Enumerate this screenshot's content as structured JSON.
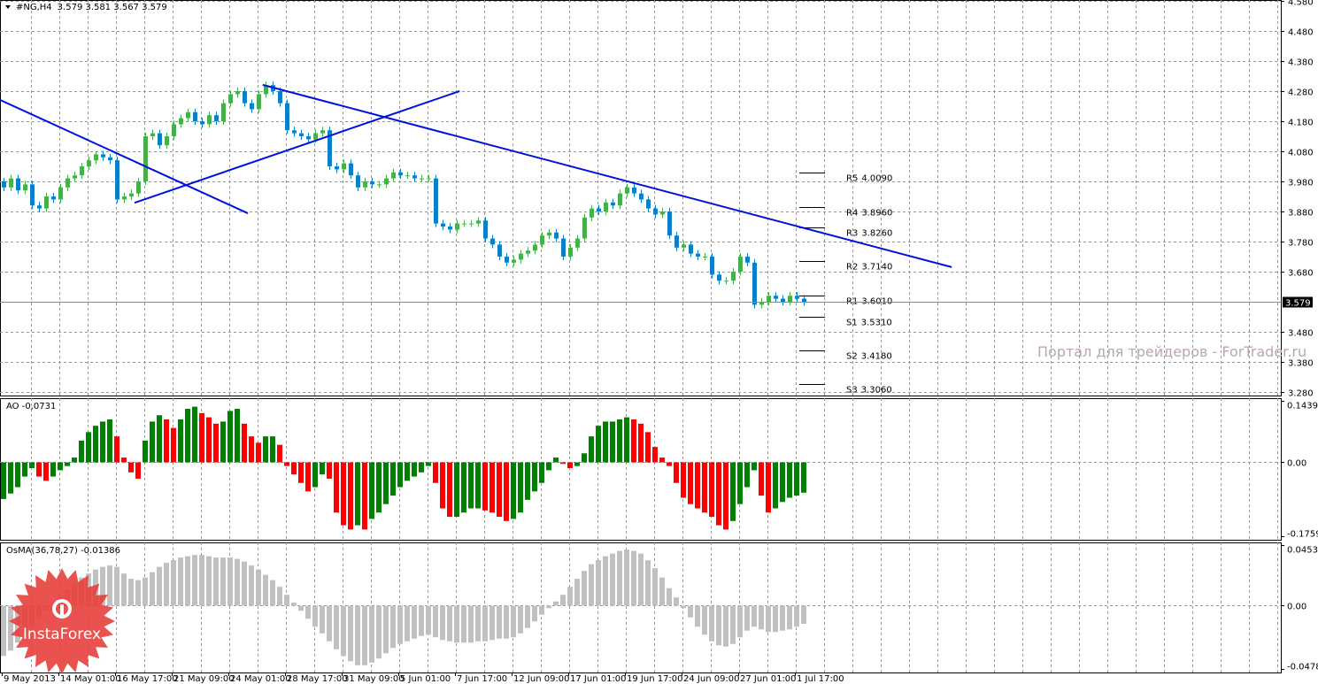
{
  "header": {
    "symbol_label": "#NG,H4",
    "ohlc": "3.579 3.581 3.567 3.579"
  },
  "watermark": "Портал для трейдеров - ForTrader.ru",
  "logo": {
    "text": "InstaForex",
    "color": "#e8403c"
  },
  "colors": {
    "bull": "#48b04a",
    "bear": "#0a80c8",
    "trendline": "#0010e0",
    "ao_up": "#008000",
    "ao_down": "#ff0000",
    "osma": "#c0c0c0",
    "grid": "#8a98a8"
  },
  "chart_data": [
    {
      "type": "candlestick",
      "title": "#NG,H4",
      "ylim": [
        3.28,
        4.58
      ],
      "yticks": [
        "4.580",
        "4.480",
        "4.380",
        "4.280",
        "4.180",
        "4.080",
        "3.980",
        "3.880",
        "3.780",
        "3.680",
        "3.480",
        "3.380",
        "3.280"
      ],
      "current_price": "3.579",
      "xticks": [
        "9 May 2013",
        "14 May 01:00",
        "16 May 17:00",
        "21 May 09:00",
        "24 May 01:00",
        "28 May 17:00",
        "31 May 09:00",
        "5 Jun 01:00",
        "7 Jun 17:00",
        "12 Jun 09:00",
        "17 Jun 01:00",
        "19 Jun 17:00",
        "24 Jun 09:00",
        "27 Jun 01:00",
        "1 Jul 17:00"
      ],
      "close": [
        3.96,
        3.99,
        3.95,
        3.97,
        3.9,
        3.89,
        3.93,
        3.92,
        3.96,
        3.99,
        4.0,
        4.03,
        4.05,
        4.07,
        4.06,
        4.05,
        3.92,
        3.93,
        3.94,
        3.98,
        4.13,
        4.14,
        4.1,
        4.13,
        4.17,
        4.19,
        4.21,
        4.18,
        4.17,
        4.2,
        4.18,
        4.24,
        4.27,
        4.28,
        4.24,
        4.22,
        4.27,
        4.3,
        4.28,
        4.24,
        4.15,
        4.14,
        4.13,
        4.12,
        4.14,
        4.15,
        4.03,
        4.02,
        4.04,
        4.0,
        3.96,
        3.98,
        3.97,
        3.97,
        3.99,
        4.01,
        4.0,
        4.0,
        3.99,
        3.99,
        3.99,
        3.84,
        3.83,
        3.82,
        3.84,
        3.84,
        3.84,
        3.85,
        3.79,
        3.77,
        3.73,
        3.71,
        3.72,
        3.74,
        3.75,
        3.77,
        3.8,
        3.81,
        3.79,
        3.73,
        3.76,
        3.79,
        3.86,
        3.89,
        3.88,
        3.91,
        3.9,
        3.94,
        3.96,
        3.94,
        3.92,
        3.89,
        3.87,
        3.88,
        3.8,
        3.76,
        3.77,
        3.74,
        3.73,
        3.73,
        3.67,
        3.65,
        3.65,
        3.68,
        3.73,
        3.71,
        3.57,
        3.58,
        3.6,
        3.59,
        3.58,
        3.6,
        3.59,
        3.579
      ],
      "trendlines": [
        {
          "from": [
            -0.5,
            4.251
          ],
          "to": [
            34.5,
            3.874
          ]
        },
        {
          "from": [
            18.5,
            3.909
          ],
          "to": [
            64.4,
            4.28
          ]
        },
        {
          "from": [
            36.6,
            4.301
          ],
          "to": [
            133.9,
            3.695
          ]
        }
      ],
      "pivots": [
        {
          "label": "R5",
          "value": "4.0090"
        },
        {
          "label": "R4",
          "value": "3.8960"
        },
        {
          "label": "R3",
          "value": "3.8260"
        },
        {
          "label": "R2",
          "value": "3.7140"
        },
        {
          "label": "R1",
          "value": "3.6010"
        },
        {
          "label": "S1",
          "value": "3.5310"
        },
        {
          "label": "S2",
          "value": "3.4180"
        },
        {
          "label": "S3",
          "value": "3.3060"
        }
      ]
    },
    {
      "type": "bar",
      "title": "AO -0,0731",
      "ylim": [
        -0.1759,
        0.1439
      ],
      "yticks": [
        "0.1439",
        "0.00",
        "-0.1759"
      ],
      "values": [
        -0.088,
        -0.075,
        -0.06,
        -0.035,
        -0.015,
        -0.035,
        -0.045,
        -0.035,
        -0.02,
        -0.01,
        0.01,
        0.05,
        0.07,
        0.085,
        0.095,
        0.1,
        0.06,
        0.01,
        -0.025,
        -0.04,
        0.05,
        0.095,
        0.11,
        0.1,
        0.08,
        0.1,
        0.125,
        0.13,
        0.115,
        0.105,
        0.09,
        0.095,
        0.12,
        0.125,
        0.09,
        0.06,
        0.045,
        0.06,
        0.06,
        0.04,
        -0.01,
        -0.03,
        -0.05,
        -0.07,
        -0.06,
        -0.03,
        -0.04,
        -0.12,
        -0.15,
        -0.16,
        -0.15,
        -0.16,
        -0.135,
        -0.12,
        -0.1,
        -0.08,
        -0.06,
        -0.045,
        -0.035,
        -0.025,
        -0.01,
        -0.05,
        -0.11,
        -0.13,
        -0.13,
        -0.12,
        -0.11,
        -0.11,
        -0.115,
        -0.12,
        -0.13,
        -0.14,
        -0.135,
        -0.12,
        -0.09,
        -0.07,
        -0.05,
        -0.02,
        0.01,
        -0.005,
        -0.015,
        -0.01,
        0.02,
        0.06,
        0.085,
        0.095,
        0.095,
        0.1,
        0.105,
        0.1,
        0.09,
        0.07,
        0.035,
        0.01,
        -0.01,
        -0.05,
        -0.085,
        -0.1,
        -0.11,
        -0.12,
        -0.13,
        -0.15,
        -0.16,
        -0.14,
        -0.1,
        -0.06,
        -0.02,
        -0.08,
        -0.12,
        -0.11,
        -0.095,
        -0.085,
        -0.08,
        -0.0731
      ]
    },
    {
      "type": "bar",
      "title": "OsMA(36,78,27) -0.01386",
      "ylim": [
        -0.04781,
        0.04539
      ],
      "yticks": [
        "0.04539",
        "0.00",
        "-0.04781"
      ],
      "values": [
        -0.038,
        -0.034,
        -0.028,
        -0.022,
        -0.016,
        -0.01,
        -0.004,
        0.002,
        0.007,
        0.012,
        0.017,
        0.021,
        0.024,
        0.027,
        0.029,
        0.03,
        0.029,
        0.024,
        0.02,
        0.019,
        0.021,
        0.025,
        0.029,
        0.032,
        0.034,
        0.036,
        0.037,
        0.038,
        0.038,
        0.037,
        0.036,
        0.036,
        0.036,
        0.035,
        0.033,
        0.03,
        0.027,
        0.023,
        0.019,
        0.014,
        0.008,
        0.002,
        -0.004,
        -0.01,
        -0.016,
        -0.021,
        -0.027,
        -0.033,
        -0.038,
        -0.042,
        -0.045,
        -0.045,
        -0.043,
        -0.04,
        -0.036,
        -0.032,
        -0.029,
        -0.027,
        -0.025,
        -0.023,
        -0.022,
        -0.024,
        -0.026,
        -0.027,
        -0.028,
        -0.028,
        -0.028,
        -0.027,
        -0.027,
        -0.026,
        -0.025,
        -0.025,
        -0.024,
        -0.021,
        -0.017,
        -0.012,
        -0.007,
        -0.002,
        0.003,
        0.008,
        0.014,
        0.02,
        0.026,
        0.031,
        0.034,
        0.037,
        0.039,
        0.041,
        0.042,
        0.041,
        0.039,
        0.034,
        0.028,
        0.021,
        0.013,
        0.006,
        -0.002,
        -0.009,
        -0.016,
        -0.022,
        -0.027,
        -0.03,
        -0.031,
        -0.029,
        -0.024,
        -0.019,
        -0.016,
        -0.018,
        -0.02,
        -0.02,
        -0.019,
        -0.018,
        -0.016,
        -0.01386
      ]
    }
  ]
}
